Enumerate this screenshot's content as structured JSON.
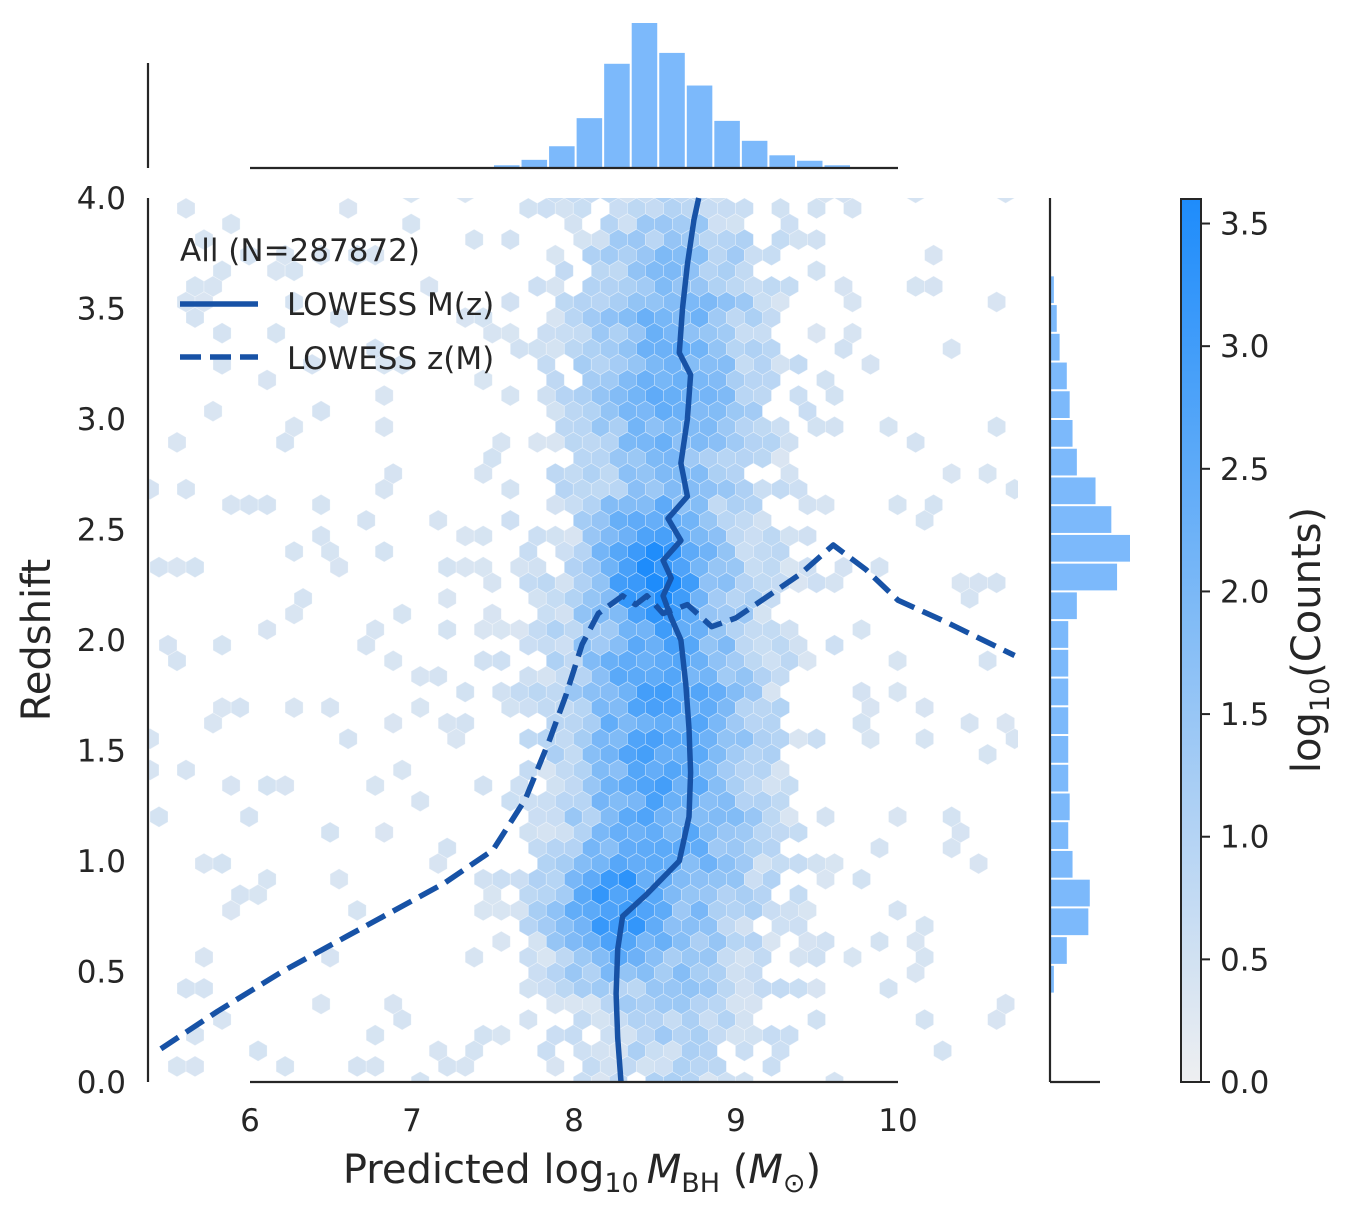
{
  "chart_data": [
    {
      "id": "main",
      "type": "hexbin",
      "xlabel": {
        "pre": "Predicted log",
        "sub": "10",
        "italic": "M",
        "italic_sub": "BH",
        "post_open": " (",
        "unit": "M",
        "unit_sub": "⊙",
        "post_close": ")"
      },
      "ylabel": "Redshift",
      "xlim": [
        5.4,
        10.8
      ],
      "ylim": [
        0.0,
        4.0
      ],
      "xticks": [
        "6",
        "7",
        "8",
        "9",
        "10"
      ],
      "yticks": [
        "0.0",
        "0.5",
        "1.0",
        "1.5",
        "2.0",
        "2.5",
        "3.0",
        "3.5",
        "4.0"
      ],
      "legend": {
        "title": "All (N=287872)",
        "location": "top-left",
        "entries": [
          {
            "label": "LOWESS M(z)",
            "style": "solid"
          },
          {
            "label": "LOWESS z(M)",
            "style": "dashed"
          }
        ]
      },
      "density_note": "log10(counts) per hexagon; peak near M=8.5, z=2.3",
      "series": [
        {
          "name": "LOWESS M(z)",
          "style": "solid",
          "color": "#1752a6",
          "points": [
            [
              8.29,
              0.0
            ],
            [
              8.27,
              0.2
            ],
            [
              8.26,
              0.4
            ],
            [
              8.27,
              0.6
            ],
            [
              8.3,
              0.75
            ],
            [
              8.45,
              0.85
            ],
            [
              8.65,
              1.0
            ],
            [
              8.71,
              1.2
            ],
            [
              8.72,
              1.4
            ],
            [
              8.71,
              1.6
            ],
            [
              8.69,
              1.8
            ],
            [
              8.66,
              2.0
            ],
            [
              8.6,
              2.1
            ],
            [
              8.55,
              2.2
            ],
            [
              8.6,
              2.28
            ],
            [
              8.55,
              2.36
            ],
            [
              8.66,
              2.45
            ],
            [
              8.58,
              2.55
            ],
            [
              8.7,
              2.65
            ],
            [
              8.66,
              2.8
            ],
            [
              8.7,
              3.0
            ],
            [
              8.72,
              3.2
            ],
            [
              8.65,
              3.3
            ],
            [
              8.67,
              3.5
            ],
            [
              8.7,
              3.7
            ],
            [
              8.74,
              3.9
            ],
            [
              8.77,
              4.0
            ]
          ]
        },
        {
          "name": "LOWESS z(M)",
          "style": "dashed",
          "color": "#1752a6",
          "points": [
            [
              5.45,
              0.15
            ],
            [
              5.8,
              0.32
            ],
            [
              6.2,
              0.5
            ],
            [
              6.6,
              0.66
            ],
            [
              7.0,
              0.82
            ],
            [
              7.2,
              0.9
            ],
            [
              7.5,
              1.05
            ],
            [
              7.7,
              1.28
            ],
            [
              7.85,
              1.55
            ],
            [
              7.95,
              1.75
            ],
            [
              8.05,
              1.98
            ],
            [
              8.15,
              2.12
            ],
            [
              8.3,
              2.2
            ],
            [
              8.38,
              2.16
            ],
            [
              8.45,
              2.2
            ],
            [
              8.55,
              2.12
            ],
            [
              8.7,
              2.16
            ],
            [
              8.85,
              2.06
            ],
            [
              9.0,
              2.1
            ],
            [
              9.2,
              2.2
            ],
            [
              9.4,
              2.3
            ],
            [
              9.6,
              2.43
            ],
            [
              9.8,
              2.32
            ],
            [
              10.0,
              2.18
            ],
            [
              10.3,
              2.08
            ],
            [
              10.72,
              1.93
            ]
          ]
        }
      ]
    },
    {
      "id": "top_hist",
      "type": "bar",
      "orientation": "vertical",
      "description": "marginal histogram of predicted log10 MBH",
      "bin_edges": [
        7.5,
        7.67,
        7.84,
        8.01,
        8.18,
        8.35,
        8.52,
        8.69,
        8.86,
        9.03,
        9.2,
        9.37,
        9.54,
        9.71,
        9.88
      ],
      "values": [
        0.03,
        0.09,
        0.24,
        0.55,
        1.15,
        1.6,
        1.27,
        0.91,
        0.52,
        0.3,
        0.14,
        0.08,
        0.03,
        0.01
      ]
    },
    {
      "id": "right_hist",
      "type": "bar",
      "orientation": "horizontal",
      "description": "marginal histogram of redshift",
      "bin_edges": [
        0.4,
        0.53,
        0.66,
        0.79,
        0.92,
        1.05,
        1.18,
        1.31,
        1.44,
        1.57,
        1.7,
        1.83,
        1.96,
        2.09,
        2.22,
        2.35,
        2.48,
        2.61,
        2.74,
        2.87,
        3.0,
        3.13,
        3.26,
        3.39,
        3.52,
        3.65
      ],
      "values": [
        0.1,
        0.55,
        1.3,
        1.35,
        0.75,
        0.6,
        0.65,
        0.6,
        0.6,
        0.6,
        0.6,
        0.6,
        0.6,
        0.9,
        2.3,
        2.75,
        2.1,
        1.55,
        0.9,
        0.75,
        0.65,
        0.55,
        0.3,
        0.2,
        0.1
      ]
    },
    {
      "id": "colorbar",
      "type": "colorbar",
      "label": {
        "pre": "log",
        "sub": "10",
        "post": "(Counts)"
      },
      "range": [
        0.0,
        3.6
      ],
      "ticks": [
        "0.0",
        "0.5",
        "1.0",
        "1.5",
        "2.0",
        "2.5",
        "3.0",
        "3.5"
      ],
      "color_low": "#eeeff1",
      "color_high": "#1e8cfb"
    }
  ],
  "colors": {
    "hist_bar": "#7cb9fb",
    "line": "#1752a6",
    "axis": "#262626",
    "hex_low": "#eeeff1",
    "hex_high": "#1e8cfb"
  }
}
